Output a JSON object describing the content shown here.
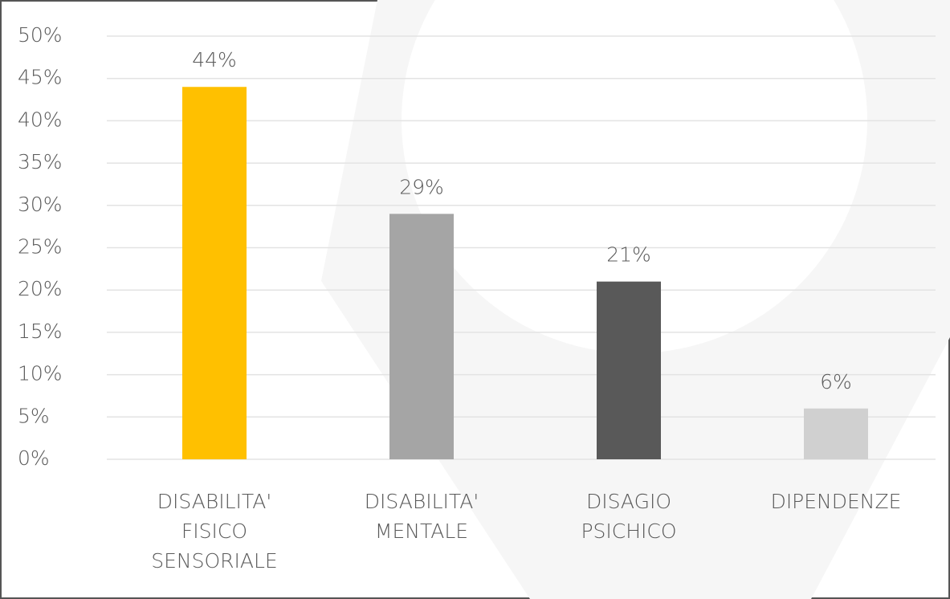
{
  "chart_data": {
    "type": "bar",
    "categories": [
      [
        "DISABILITA'",
        "FISICO",
        "SENSORIALE"
      ],
      [
        "DISABILITA'",
        "MENTALE"
      ],
      [
        "DISAGIO",
        "PSICHICO"
      ],
      [
        "DIPENDENZE"
      ]
    ],
    "values": [
      44,
      29,
      21,
      6
    ],
    "value_labels": [
      "44%",
      "29%",
      "21%",
      "6%"
    ],
    "colors": [
      "#ffc000",
      "#a5a5a5",
      "#595959",
      "#d0d0d0"
    ],
    "ylim": [
      0,
      50
    ],
    "yticks": [
      {
        "value": 0,
        "label": "0%"
      },
      {
        "value": 5,
        "label": "5%"
      },
      {
        "value": 10,
        "label": "10%"
      },
      {
        "value": 15,
        "label": "15%"
      },
      {
        "value": 20,
        "label": "20%"
      },
      {
        "value": 25,
        "label": "25%"
      },
      {
        "value": 30,
        "label": "30%"
      },
      {
        "value": 35,
        "label": "35%"
      },
      {
        "value": 40,
        "label": "40%"
      },
      {
        "value": 45,
        "label": "45%"
      },
      {
        "value": 50,
        "label": "50%"
      }
    ],
    "grid": true
  }
}
